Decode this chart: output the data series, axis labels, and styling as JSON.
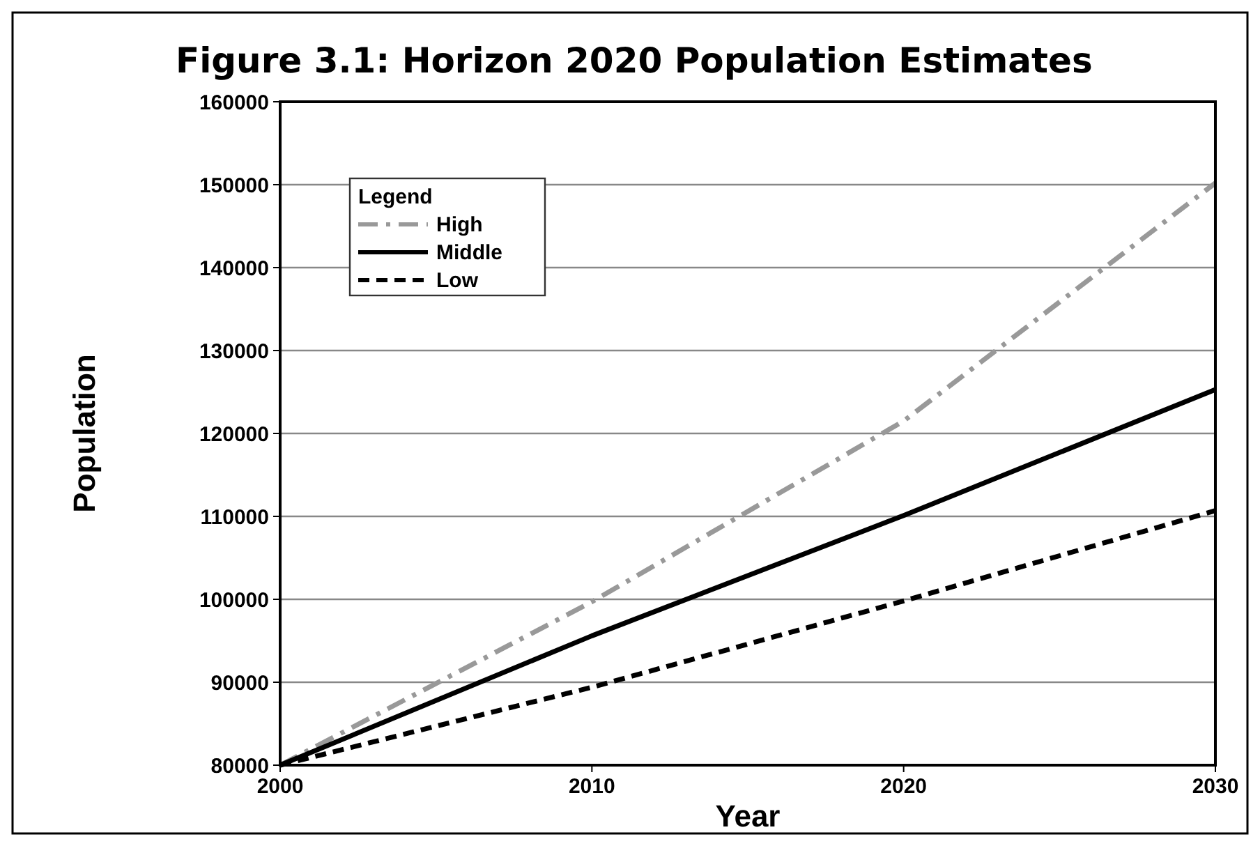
{
  "chart_data": {
    "type": "line",
    "title": "Figure 3.1: Horizon 2020 Population Estimates",
    "xlabel": "Year",
    "ylabel": "Population",
    "legend_title": "Legend",
    "legend": "top left",
    "grid": "y",
    "x": [
      2000,
      2010,
      2020,
      2030
    ],
    "series": [
      {
        "name": "High",
        "color": "#999999",
        "line_style": "dashed",
        "values": [
          80000,
          99700,
          121500,
          150200
        ]
      },
      {
        "name": "Middle",
        "color": "#000000",
        "line_style": "solid",
        "values": [
          80000,
          95600,
          110100,
          125300
        ]
      },
      {
        "name": "Low",
        "color": "#000000",
        "line_style": "dotted",
        "values": [
          80000,
          89400,
          99800,
          110700
        ]
      }
    ],
    "xlim": [
      2000,
      2030
    ],
    "xticks": [
      2000,
      2010,
      2020,
      2030
    ],
    "ylim": [
      80000,
      160000
    ],
    "yticks": [
      80000,
      90000,
      100000,
      110000,
      120000,
      130000,
      140000,
      150000,
      160000
    ]
  }
}
